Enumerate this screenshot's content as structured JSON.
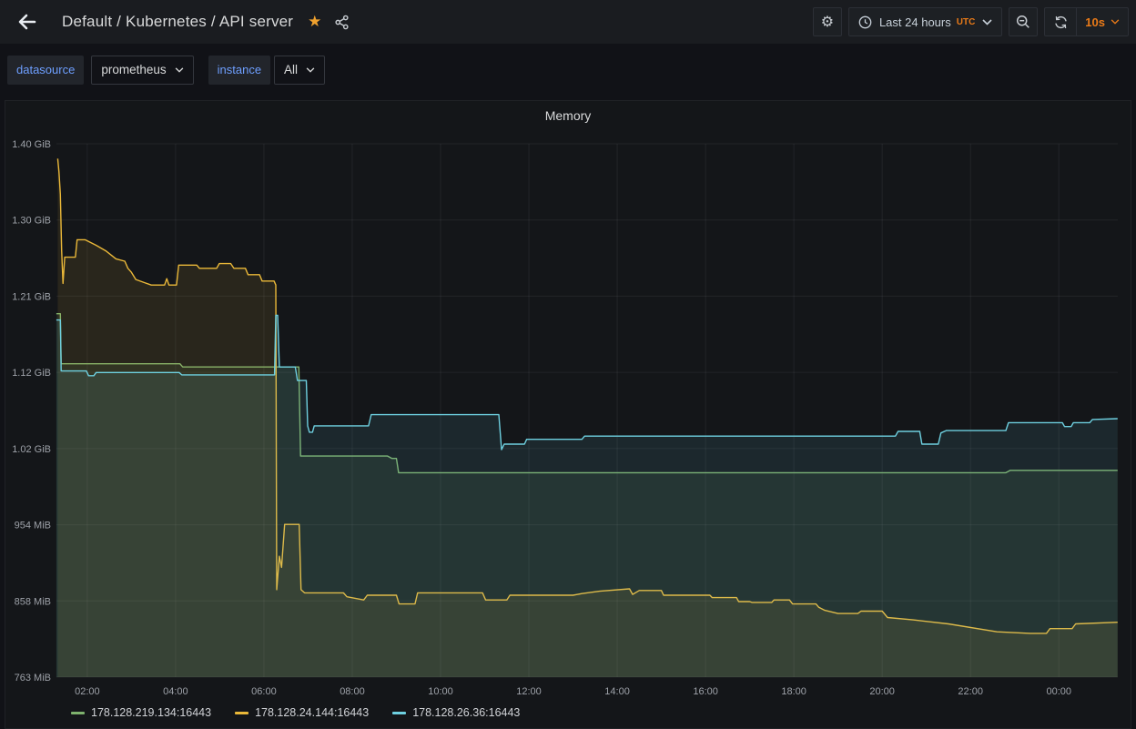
{
  "navbar": {
    "title": "Default / Kubernetes / API server",
    "star": "★",
    "gear": "⚙",
    "time_range": {
      "label": "Last 24 hours",
      "timezone": "UTC"
    },
    "refresh": {
      "interval": "10s"
    }
  },
  "colors": {
    "accent_orange": "#eb7b18",
    "star_orange": "#f0a12e",
    "panel_bg": "#141619",
    "page_bg": "#111217",
    "grid": "rgba(204,204,220,0.08)",
    "axis_text": "#9da1a8"
  },
  "variables": [
    {
      "label": "datasource",
      "value": "prometheus"
    },
    {
      "label": "instance",
      "value": "All"
    }
  ],
  "panel": {
    "title": "Memory"
  },
  "chart_data": {
    "type": "area",
    "title": "Memory",
    "unit": "MiB",
    "grid": true,
    "legend_position": "bottom",
    "fill_opacity": 0.1,
    "line_width": 1.4,
    "x_min": 1.302,
    "x_max": 25.335,
    "y_min": 763,
    "y_max": 1433.6,
    "x_ticks": [
      {
        "h": 2,
        "label": "02:00"
      },
      {
        "h": 4,
        "label": "04:00"
      },
      {
        "h": 6,
        "label": "06:00"
      },
      {
        "h": 8,
        "label": "08:00"
      },
      {
        "h": 10,
        "label": "10:00"
      },
      {
        "h": 12,
        "label": "12:00"
      },
      {
        "h": 14,
        "label": "14:00"
      },
      {
        "h": 16,
        "label": "16:00"
      },
      {
        "h": 18,
        "label": "18:00"
      },
      {
        "h": 20,
        "label": "20:00"
      },
      {
        "h": 22,
        "label": "22:00"
      },
      {
        "h": 24,
        "label": "00:00"
      }
    ],
    "y_ticks": [
      "1.40 GiB",
      "1.30 GiB",
      "1.21 GiB",
      "1.12 GiB",
      "1.02 GiB",
      "954 MiB",
      "858 MiB",
      "763 MiB"
    ],
    "series": [
      {
        "name": "178.128.219.134:16443",
        "color": "#7EB26D",
        "points": [
          [
            1.3,
            1220
          ],
          [
            1.39,
            1220
          ],
          [
            1.41,
            1157
          ],
          [
            4.1,
            1157
          ],
          [
            4.16,
            1153
          ],
          [
            6.79,
            1153
          ],
          [
            6.83,
            1041
          ],
          [
            8.8,
            1041
          ],
          [
            8.9,
            1038
          ],
          [
            9.0,
            1038
          ],
          [
            9.05,
            1020
          ],
          [
            22.8,
            1020
          ],
          [
            22.9,
            1023
          ],
          [
            25.33,
            1023
          ]
        ]
      },
      {
        "name": "178.128.24.144:16443",
        "color": "#EAB839",
        "points": [
          [
            1.33,
            1415
          ],
          [
            1.36,
            1398
          ],
          [
            1.39,
            1370
          ],
          [
            1.42,
            1300
          ],
          [
            1.45,
            1258
          ],
          [
            1.49,
            1291
          ],
          [
            1.73,
            1291
          ],
          [
            1.77,
            1313
          ],
          [
            1.95,
            1313
          ],
          [
            2.2,
            1306
          ],
          [
            2.42,
            1299
          ],
          [
            2.65,
            1289
          ],
          [
            2.85,
            1286
          ],
          [
            2.92,
            1277
          ],
          [
            3.0,
            1272
          ],
          [
            3.1,
            1263
          ],
          [
            3.3,
            1259
          ],
          [
            3.45,
            1256
          ],
          [
            3.75,
            1256
          ],
          [
            3.8,
            1264
          ],
          [
            3.85,
            1256
          ],
          [
            4.02,
            1256
          ],
          [
            4.07,
            1281
          ],
          [
            4.48,
            1281
          ],
          [
            4.54,
            1277
          ],
          [
            4.93,
            1277
          ],
          [
            4.99,
            1283
          ],
          [
            5.25,
            1283
          ],
          [
            5.32,
            1277
          ],
          [
            5.58,
            1277
          ],
          [
            5.64,
            1269
          ],
          [
            5.9,
            1269
          ],
          [
            5.96,
            1261
          ],
          [
            6.23,
            1261
          ],
          [
            6.27,
            1256
          ],
          [
            6.29,
            873
          ],
          [
            6.35,
            915
          ],
          [
            6.4,
            901
          ],
          [
            6.47,
            955
          ],
          [
            6.8,
            955
          ],
          [
            6.84,
            873
          ],
          [
            6.92,
            869
          ],
          [
            7.8,
            869
          ],
          [
            7.88,
            864
          ],
          [
            8.26,
            860
          ],
          [
            8.34,
            866
          ],
          [
            9.0,
            866
          ],
          [
            9.06,
            855
          ],
          [
            9.42,
            855
          ],
          [
            9.48,
            869
          ],
          [
            10.95,
            869
          ],
          [
            11.02,
            860
          ],
          [
            11.5,
            860
          ],
          [
            11.57,
            866
          ],
          [
            13.0,
            866
          ],
          [
            13.2,
            868
          ],
          [
            13.6,
            871
          ],
          [
            14.28,
            874
          ],
          [
            14.35,
            867
          ],
          [
            14.5,
            872
          ],
          [
            15.0,
            872
          ],
          [
            15.05,
            866
          ],
          [
            16.1,
            866
          ],
          [
            16.15,
            863
          ],
          [
            16.7,
            863
          ],
          [
            16.75,
            858
          ],
          [
            17.0,
            858
          ],
          [
            17.05,
            857
          ],
          [
            17.5,
            857
          ],
          [
            17.55,
            860
          ],
          [
            17.9,
            860
          ],
          [
            17.97,
            855
          ],
          [
            18.5,
            855
          ],
          [
            18.56,
            851
          ],
          [
            18.7,
            847
          ],
          [
            19.0,
            843
          ],
          [
            19.45,
            843
          ],
          [
            19.52,
            846
          ],
          [
            20.0,
            846
          ],
          [
            20.12,
            838
          ],
          [
            20.7,
            835
          ],
          [
            21.5,
            830
          ],
          [
            22.6,
            820
          ],
          [
            23.35,
            818
          ],
          [
            23.72,
            818
          ],
          [
            23.8,
            824
          ],
          [
            24.3,
            824
          ],
          [
            24.38,
            830
          ],
          [
            25.33,
            832
          ]
        ]
      },
      {
        "name": "178.128.26.36:16443",
        "color": "#6ED0E0",
        "points": [
          [
            1.3,
            1212
          ],
          [
            1.39,
            1212
          ],
          [
            1.41,
            1148
          ],
          [
            1.98,
            1148
          ],
          [
            2.03,
            1142
          ],
          [
            2.15,
            1142
          ],
          [
            2.2,
            1146
          ],
          [
            4.08,
            1146
          ],
          [
            4.14,
            1143
          ],
          [
            6.24,
            1143
          ],
          [
            6.27,
            1218
          ],
          [
            6.31,
            1218
          ],
          [
            6.35,
            1153
          ],
          [
            6.71,
            1153
          ],
          [
            6.76,
            1136
          ],
          [
            6.96,
            1136
          ],
          [
            6.99,
            1079
          ],
          [
            7.03,
            1071
          ],
          [
            7.1,
            1071
          ],
          [
            7.14,
            1079
          ],
          [
            8.37,
            1079
          ],
          [
            8.43,
            1093
          ],
          [
            11.32,
            1093
          ],
          [
            11.38,
            1049
          ],
          [
            11.44,
            1056
          ],
          [
            11.9,
            1056
          ],
          [
            11.95,
            1062
          ],
          [
            13.2,
            1062
          ],
          [
            13.26,
            1066
          ],
          [
            20.3,
            1066
          ],
          [
            20.36,
            1072
          ],
          [
            20.85,
            1072
          ],
          [
            20.9,
            1056
          ],
          [
            21.27,
            1056
          ],
          [
            21.33,
            1070
          ],
          [
            21.45,
            1073
          ],
          [
            22.8,
            1073
          ],
          [
            22.86,
            1083
          ],
          [
            24.08,
            1083
          ],
          [
            24.13,
            1078
          ],
          [
            24.28,
            1078
          ],
          [
            24.33,
            1083
          ],
          [
            24.7,
            1083
          ],
          [
            24.76,
            1087
          ],
          [
            25.33,
            1088
          ]
        ]
      }
    ]
  }
}
